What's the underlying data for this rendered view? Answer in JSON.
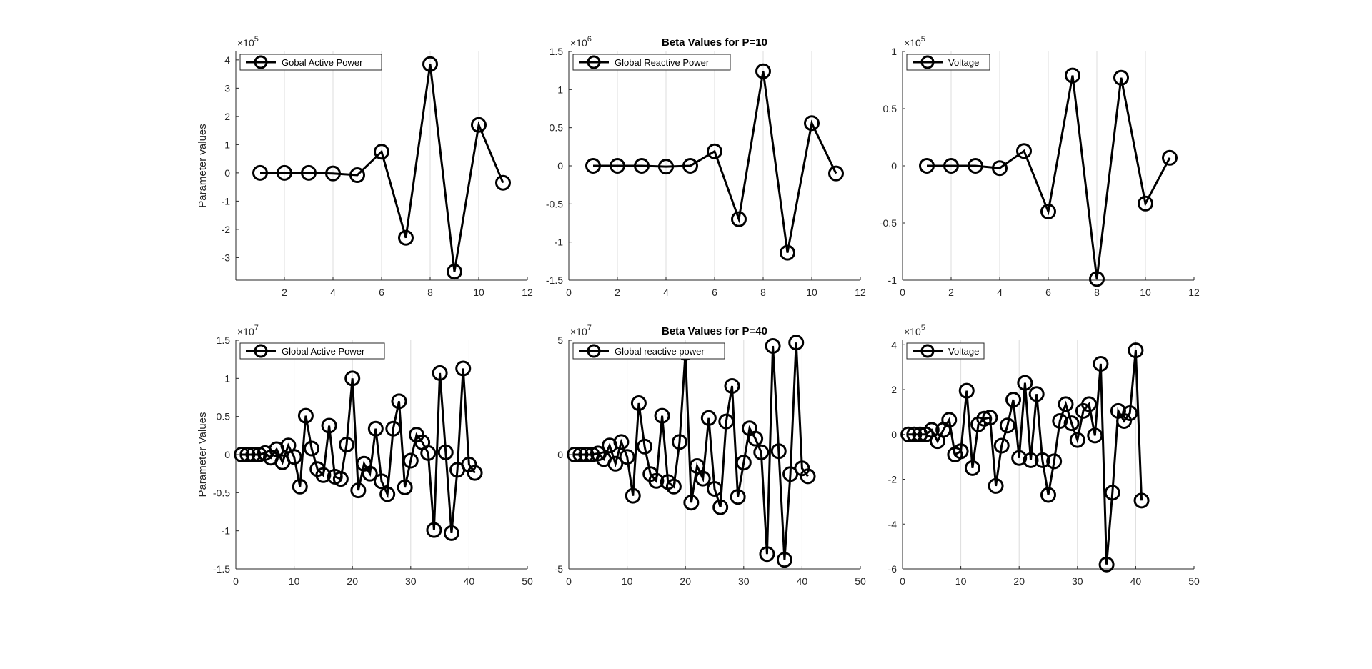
{
  "figure": {
    "background": "#ffffff",
    "line_color": "#000000",
    "axis_color": "#262626",
    "grid_color": "#dcdcdc"
  },
  "chart_data": [
    {
      "type": "line",
      "title": "",
      "xlabel": "",
      "ylabel": "Parameter values",
      "exponent_prefix": "×10",
      "exponent": "5",
      "xlim": [
        0,
        12
      ],
      "ylim": [
        -3.8,
        4.3
      ],
      "x_ticks": [
        2,
        4,
        6,
        8,
        10,
        12
      ],
      "x_tick_labels": [
        "2",
        "4",
        "6",
        "8",
        "10",
        "12"
      ],
      "y_ticks": [
        -3,
        -2,
        -1,
        0,
        1,
        2,
        3,
        4
      ],
      "y_tick_labels": [
        "-3",
        "-2",
        "-1",
        "0",
        "1",
        "2",
        "3",
        "4"
      ],
      "grid": "x",
      "legend_position": "top-left",
      "marker": "circle",
      "series": [
        {
          "name": "Gobal Active Power",
          "x": [
            1,
            2,
            3,
            4,
            5,
            6,
            7,
            8,
            9,
            10,
            11
          ],
          "y": [
            0,
            0,
            0,
            -0.02,
            -0.08,
            0.75,
            -2.3,
            3.85,
            -3.5,
            1.7,
            -0.35
          ]
        }
      ]
    },
    {
      "type": "line",
      "title": "Beta Values for P=10",
      "xlabel": "",
      "ylabel": "",
      "exponent_prefix": "×10",
      "exponent": "6",
      "xlim": [
        0,
        12
      ],
      "ylim": [
        -1.5,
        1.5
      ],
      "x_ticks": [
        0,
        2,
        4,
        6,
        8,
        10,
        12
      ],
      "x_tick_labels": [
        "0",
        "2",
        "4",
        "6",
        "8",
        "10",
        "12"
      ],
      "y_ticks": [
        -1.5,
        -1,
        -0.5,
        0,
        0.5,
        1,
        1.5
      ],
      "y_tick_labels": [
        "-1.5",
        "-1",
        "-0.5",
        "0",
        "0.5",
        "1",
        "1.5"
      ],
      "grid": "x",
      "legend_position": "top-left",
      "marker": "circle",
      "series": [
        {
          "name": "Global Reactive Power",
          "x": [
            1,
            2,
            3,
            4,
            5,
            6,
            7,
            8,
            9,
            10,
            11
          ],
          "y": [
            0,
            0,
            0,
            -0.01,
            0,
            0.19,
            -0.7,
            1.24,
            -1.14,
            0.56,
            -0.1
          ]
        }
      ]
    },
    {
      "type": "line",
      "title": "",
      "xlabel": "",
      "ylabel": "",
      "exponent_prefix": "×10",
      "exponent": "5",
      "xlim": [
        0,
        12
      ],
      "ylim": [
        -1,
        1
      ],
      "x_ticks": [
        0,
        2,
        4,
        6,
        8,
        10,
        12
      ],
      "x_tick_labels": [
        "0",
        "2",
        "4",
        "6",
        "8",
        "10",
        "12"
      ],
      "y_ticks": [
        -1,
        -0.5,
        0,
        0.5,
        1
      ],
      "y_tick_labels": [
        "-1",
        "-0.5",
        "0",
        "0.5",
        "1"
      ],
      "grid": "x",
      "legend_position": "top-left",
      "marker": "circle",
      "series": [
        {
          "name": "Voltage",
          "x": [
            1,
            2,
            3,
            4,
            5,
            6,
            7,
            8,
            9,
            10,
            11
          ],
          "y": [
            0,
            0,
            0,
            -0.02,
            0.13,
            -0.4,
            0.79,
            -0.99,
            0.77,
            -0.33,
            0.07
          ]
        }
      ]
    },
    {
      "type": "line",
      "title": "",
      "xlabel": "",
      "ylabel": "Parameter Values",
      "exponent_prefix": "×10",
      "exponent": "7",
      "xlim": [
        0,
        50
      ],
      "ylim": [
        -1.5,
        1.5
      ],
      "x_ticks": [
        0,
        10,
        20,
        30,
        40,
        50
      ],
      "x_tick_labels": [
        "0",
        "10",
        "20",
        "30",
        "40",
        "50"
      ],
      "y_ticks": [
        -1.5,
        -1,
        -0.5,
        0,
        0.5,
        1,
        1.5
      ],
      "y_tick_labels": [
        "-1.5",
        "-1",
        "-0.5",
        "0",
        "0.5",
        "1",
        "1.5"
      ],
      "grid": "x",
      "legend_position": "top-left",
      "marker": "circle",
      "series": [
        {
          "name": "Global Active Power",
          "x": [
            1,
            2,
            3,
            4,
            5,
            6,
            7,
            8,
            9,
            10,
            11,
            12,
            13,
            14,
            15,
            16,
            17,
            18,
            19,
            20,
            21,
            22,
            23,
            24,
            25,
            26,
            27,
            28,
            29,
            30,
            31,
            32,
            33,
            34,
            35,
            36,
            37,
            38,
            39,
            40,
            41
          ],
          "y": [
            0,
            0,
            0,
            0,
            0.02,
            -0.04,
            0.07,
            -0.1,
            0.12,
            -0.03,
            -0.42,
            0.51,
            0.08,
            -0.19,
            -0.27,
            0.38,
            -0.29,
            -0.32,
            0.13,
            1.0,
            -0.47,
            -0.12,
            -0.25,
            0.34,
            -0.35,
            -0.52,
            0.34,
            0.7,
            -0.43,
            -0.08,
            0.26,
            0.16,
            0.02,
            -0.99,
            1.07,
            0.03,
            -1.03,
            -0.2,
            1.13,
            -0.13,
            -0.24
          ]
        }
      ]
    },
    {
      "type": "line",
      "title": "Beta Values for P=40",
      "xlabel": "",
      "ylabel": "",
      "exponent_prefix": "×10",
      "exponent": "7",
      "xlim": [
        0,
        50
      ],
      "ylim": [
        -5,
        5
      ],
      "x_ticks": [
        0,
        10,
        20,
        30,
        40,
        50
      ],
      "x_tick_labels": [
        "0",
        "10",
        "20",
        "30",
        "40",
        "50"
      ],
      "y_ticks": [
        -5,
        0,
        5
      ],
      "y_tick_labels": [
        "-5",
        "0",
        "5"
      ],
      "grid": "x",
      "legend_position": "top-left",
      "marker": "circle",
      "series": [
        {
          "name": "Global reactive power",
          "x": [
            1,
            2,
            3,
            4,
            5,
            6,
            7,
            8,
            9,
            10,
            11,
            12,
            13,
            14,
            15,
            16,
            17,
            18,
            19,
            20,
            21,
            22,
            23,
            24,
            25,
            26,
            27,
            28,
            29,
            30,
            31,
            32,
            33,
            34,
            35,
            36,
            37,
            38,
            39,
            40,
            41
          ],
          "y": [
            0,
            0,
            0,
            0,
            0.05,
            -0.2,
            0.4,
            -0.4,
            0.55,
            -0.1,
            -1.8,
            2.25,
            0.35,
            -0.85,
            -1.15,
            1.7,
            -1.2,
            -1.4,
            0.55,
            4.45,
            -2.1,
            -0.5,
            -1.05,
            1.6,
            -1.5,
            -2.3,
            1.45,
            3.0,
            -1.85,
            -0.35,
            1.15,
            0.7,
            0.1,
            -4.35,
            4.75,
            0.15,
            -4.6,
            -0.85,
            4.9,
            -0.6,
            -0.95
          ]
        }
      ]
    },
    {
      "type": "line",
      "title": "",
      "xlabel": "",
      "ylabel": "",
      "exponent_prefix": "×10",
      "exponent": "5",
      "xlim": [
        0,
        50
      ],
      "ylim": [
        -6,
        4.2
      ],
      "x_ticks": [
        0,
        10,
        20,
        30,
        40,
        50
      ],
      "x_tick_labels": [
        "0",
        "10",
        "20",
        "30",
        "40",
        "50"
      ],
      "y_ticks": [
        -6,
        -4,
        -2,
        0,
        2,
        4
      ],
      "y_tick_labels": [
        "-6",
        "-4",
        "-2",
        "0",
        "2",
        "4"
      ],
      "grid": "x",
      "legend_position": "top-left",
      "marker": "circle",
      "series": [
        {
          "name": "Voltage",
          "x": [
            1,
            2,
            3,
            4,
            5,
            6,
            7,
            8,
            9,
            10,
            11,
            12,
            13,
            14,
            15,
            16,
            17,
            18,
            19,
            20,
            21,
            22,
            23,
            24,
            25,
            26,
            27,
            28,
            29,
            30,
            31,
            32,
            33,
            34,
            35,
            36,
            37,
            38,
            39,
            40,
            41
          ],
          "y": [
            0,
            0,
            0,
            0,
            0.2,
            -0.3,
            0.2,
            0.65,
            -0.9,
            -0.75,
            1.95,
            -1.5,
            0.45,
            0.7,
            0.75,
            -2.3,
            -0.5,
            0.4,
            1.55,
            -1.05,
            2.3,
            -1.15,
            1.8,
            -1.15,
            -2.7,
            -1.2,
            0.6,
            1.35,
            0.5,
            -0.25,
            1.05,
            1.35,
            -0.05,
            3.15,
            -5.8,
            -2.6,
            1.05,
            0.6,
            0.95,
            3.75,
            -2.95
          ]
        }
      ]
    }
  ]
}
